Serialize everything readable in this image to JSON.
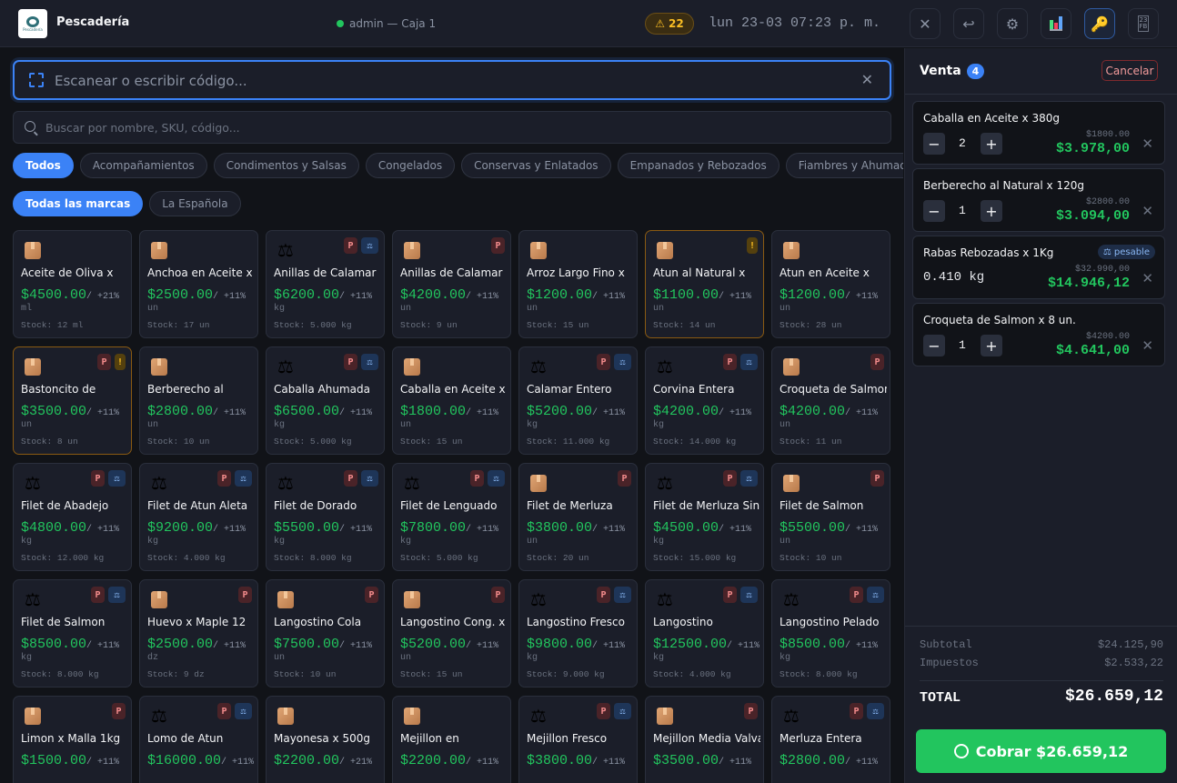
{
  "header": {
    "app_title": "Pescadería",
    "logo_text": "Pescadería Mar",
    "user_status": "admin — Caja 1",
    "alert_count": "22",
    "datetime": "lun 23-03 07:23 p. m.",
    "icons": [
      "close-icon",
      "return-icon",
      "gear-icon",
      "chart-icon",
      "key-icon",
      "calendar-icon"
    ]
  },
  "scan": {
    "placeholder": "Escanear o escribir código..."
  },
  "search": {
    "placeholder": "Buscar por nombre, SKU, código..."
  },
  "categories": [
    "Todos",
    "Acompañamientos",
    "Condimentos y Salsas",
    "Congelados",
    "Conservas y Enlatados",
    "Empanados y Rebozados",
    "Fiambres y Ahumados"
  ],
  "brands": [
    "Todas las marcas",
    "La Española"
  ],
  "products": [
    {
      "name": "Aceite de Oliva x",
      "price": "$4500.00",
      "tax": "/ +21%",
      "unit": "ml",
      "stock": "Stock: 12 ml",
      "icon": "box",
      "badges": []
    },
    {
      "name": "Anchoa en Aceite x",
      "price": "$2500.00",
      "tax": "/ +11%",
      "unit": "un",
      "stock": "Stock: 17 un",
      "icon": "box",
      "badges": []
    },
    {
      "name": "Anillas de Calamar",
      "price": "$6200.00",
      "tax": "/ +11%",
      "unit": "kg",
      "stock": "Stock: 5.000 kg",
      "icon": "scale",
      "badges": [
        "P",
        "W"
      ]
    },
    {
      "name": "Anillas de Calamar",
      "price": "$4200.00",
      "tax": "/ +11%",
      "unit": "un",
      "stock": "Stock: 9 un",
      "icon": "box",
      "badges": [
        "P"
      ]
    },
    {
      "name": "Arroz Largo Fino x",
      "price": "$1200.00",
      "tax": "/ +11%",
      "unit": "un",
      "stock": "Stock: 15 un",
      "icon": "box",
      "badges": []
    },
    {
      "name": "Atun al Natural x",
      "price": "$1100.00",
      "tax": "/ +11%",
      "unit": "un",
      "stock": "Stock: 14 un",
      "icon": "box",
      "badges": [
        "!"
      ],
      "warn": true
    },
    {
      "name": "Atun en Aceite x",
      "price": "$1200.00",
      "tax": "/ +11%",
      "unit": "un",
      "stock": "Stock: 28 un",
      "icon": "box",
      "badges": []
    },
    {
      "name": "Bastoncito de",
      "price": "$3500.00",
      "tax": "/ +11%",
      "unit": "un",
      "stock": "Stock: 8 un",
      "icon": "box",
      "badges": [
        "P",
        "!"
      ],
      "warn": true
    },
    {
      "name": "Berberecho al",
      "price": "$2800.00",
      "tax": "/ +11%",
      "unit": "un",
      "stock": "Stock: 10 un",
      "icon": "box",
      "badges": []
    },
    {
      "name": "Caballa Ahumada",
      "price": "$6500.00",
      "tax": "/ +11%",
      "unit": "kg",
      "stock": "Stock: 5.000 kg",
      "icon": "scale",
      "badges": [
        "P",
        "W"
      ]
    },
    {
      "name": "Caballa en Aceite x",
      "price": "$1800.00",
      "tax": "/ +11%",
      "unit": "un",
      "stock": "Stock: 15 un",
      "icon": "box",
      "badges": []
    },
    {
      "name": "Calamar Entero",
      "price": "$5200.00",
      "tax": "/ +11%",
      "unit": "kg",
      "stock": "Stock: 11.000 kg",
      "icon": "scale",
      "badges": [
        "P",
        "W"
      ]
    },
    {
      "name": "Corvina Entera",
      "price": "$4200.00",
      "tax": "/ +11%",
      "unit": "kg",
      "stock": "Stock: 14.000 kg",
      "icon": "scale",
      "badges": [
        "P",
        "W"
      ]
    },
    {
      "name": "Croqueta de Salmon",
      "price": "$4200.00",
      "tax": "/ +11%",
      "unit": "un",
      "stock": "Stock: 11 un",
      "icon": "box",
      "badges": [
        "P"
      ]
    },
    {
      "name": "Filet de Abadejo",
      "price": "$4800.00",
      "tax": "/ +11%",
      "unit": "kg",
      "stock": "Stock: 12.000 kg",
      "icon": "scale",
      "badges": [
        "P",
        "W"
      ]
    },
    {
      "name": "Filet de Atun Aleta",
      "price": "$9200.00",
      "tax": "/ +11%",
      "unit": "kg",
      "stock": "Stock: 4.000 kg",
      "icon": "scale",
      "badges": [
        "P",
        "W"
      ]
    },
    {
      "name": "Filet de Dorado",
      "price": "$5500.00",
      "tax": "/ +11%",
      "unit": "kg",
      "stock": "Stock: 8.000 kg",
      "icon": "scale",
      "badges": [
        "P",
        "W"
      ]
    },
    {
      "name": "Filet de Lenguado",
      "price": "$7800.00",
      "tax": "/ +11%",
      "unit": "kg",
      "stock": "Stock: 5.000 kg",
      "icon": "scale",
      "badges": [
        "P",
        "W"
      ]
    },
    {
      "name": "Filet de Merluza",
      "price": "$3800.00",
      "tax": "/ +11%",
      "unit": "un",
      "stock": "Stock: 20 un",
      "icon": "box",
      "badges": [
        "P"
      ]
    },
    {
      "name": "Filet de Merluza Sin",
      "price": "$4500.00",
      "tax": "/ +11%",
      "unit": "kg",
      "stock": "Stock: 15.000 kg",
      "icon": "scale",
      "badges": [
        "P",
        "W"
      ]
    },
    {
      "name": "Filet de Salmon",
      "price": "$5500.00",
      "tax": "/ +11%",
      "unit": "un",
      "stock": "Stock: 10 un",
      "icon": "box",
      "badges": [
        "P"
      ]
    },
    {
      "name": "Filet de Salmon",
      "price": "$8500.00",
      "tax": "/ +11%",
      "unit": "kg",
      "stock": "Stock: 8.000 kg",
      "icon": "scale",
      "badges": [
        "P",
        "W"
      ]
    },
    {
      "name": "Huevo x Maple 12",
      "price": "$2500.00",
      "tax": "/ +11%",
      "unit": "dz",
      "stock": "Stock: 9 dz",
      "icon": "box",
      "badges": [
        "P"
      ]
    },
    {
      "name": "Langostino Cola",
      "price": "$7500.00",
      "tax": "/ +11%",
      "unit": "un",
      "stock": "Stock: 10 un",
      "icon": "box",
      "badges": [
        "P"
      ]
    },
    {
      "name": "Langostino Cong. x",
      "price": "$5200.00",
      "tax": "/ +11%",
      "unit": "un",
      "stock": "Stock: 15 un",
      "icon": "box",
      "badges": [
        "P"
      ]
    },
    {
      "name": "Langostino Fresco",
      "price": "$9800.00",
      "tax": "/ +11%",
      "unit": "kg",
      "stock": "Stock: 9.000 kg",
      "icon": "scale",
      "badges": [
        "P",
        "W"
      ]
    },
    {
      "name": "Langostino",
      "price": "$12500.00",
      "tax": "/ +11%",
      "unit": "kg",
      "stock": "Stock: 4.000 kg",
      "icon": "scale",
      "badges": [
        "P",
        "W"
      ]
    },
    {
      "name": "Langostino Pelado",
      "price": "$8500.00",
      "tax": "/ +11%",
      "unit": "kg",
      "stock": "Stock: 8.000 kg",
      "icon": "scale",
      "badges": [
        "P",
        "W"
      ]
    },
    {
      "name": "Limon x Malla 1kg",
      "price": "$1500.00",
      "tax": "/ +11%",
      "icon": "box",
      "badges": [
        "P"
      ]
    },
    {
      "name": "Lomo de Atun",
      "price": "$16000.00",
      "tax": "/ +11%",
      "icon": "scale",
      "badges": [
        "P",
        "W"
      ]
    },
    {
      "name": "Mayonesa x 500g",
      "price": "$2200.00",
      "tax": "/ +21%",
      "icon": "box",
      "badges": []
    },
    {
      "name": "Mejillon en",
      "price": "$2200.00",
      "tax": "/ +11%",
      "icon": "box",
      "badges": []
    },
    {
      "name": "Mejillon Fresco",
      "price": "$3800.00",
      "tax": "/ +11%",
      "icon": "scale",
      "badges": [
        "P",
        "W"
      ]
    },
    {
      "name": "Mejillon Media Valva",
      "price": "$3500.00",
      "tax": "/ +11%",
      "icon": "box",
      "badges": [
        "P"
      ]
    },
    {
      "name": "Merluza Entera",
      "price": "$2800.00",
      "tax": "/ +11%",
      "icon": "scale",
      "badges": [
        "P",
        "W"
      ]
    }
  ],
  "cart": {
    "title": "Venta",
    "count": "4",
    "cancel_label": "Cancelar",
    "items": [
      {
        "name": "Caballa en Aceite x 380g",
        "qty": "2",
        "unit_price": "$1800.00",
        "total": "$3.978,00"
      },
      {
        "name": "Berberecho al Natural x 120g",
        "qty": "1",
        "unit_price": "$2800.00",
        "total": "$3.094,00"
      },
      {
        "name": "Rabas Rebozadas x 1Kg",
        "weight": "0.410 kg",
        "badge": "pesable",
        "unit_price": "$32.990,00",
        "total": "$14.946,12"
      },
      {
        "name": "Croqueta de Salmon x 8 un.",
        "qty": "1",
        "unit_price": "$4200.00",
        "total": "$4.641,00"
      }
    ],
    "subtotal_label": "Subtotal",
    "subtotal": "$24.125,90",
    "tax_label": "Impuestos",
    "tax": "$2.533,22",
    "total_label": "TOTAL",
    "total": "$26.659,12",
    "pay_label": "Cobrar $26.659,12"
  },
  "colors": {
    "accent": "#3b82f6",
    "price": "#22c55e",
    "warning": "#fbbf24",
    "danger": "#f28b8b"
  }
}
